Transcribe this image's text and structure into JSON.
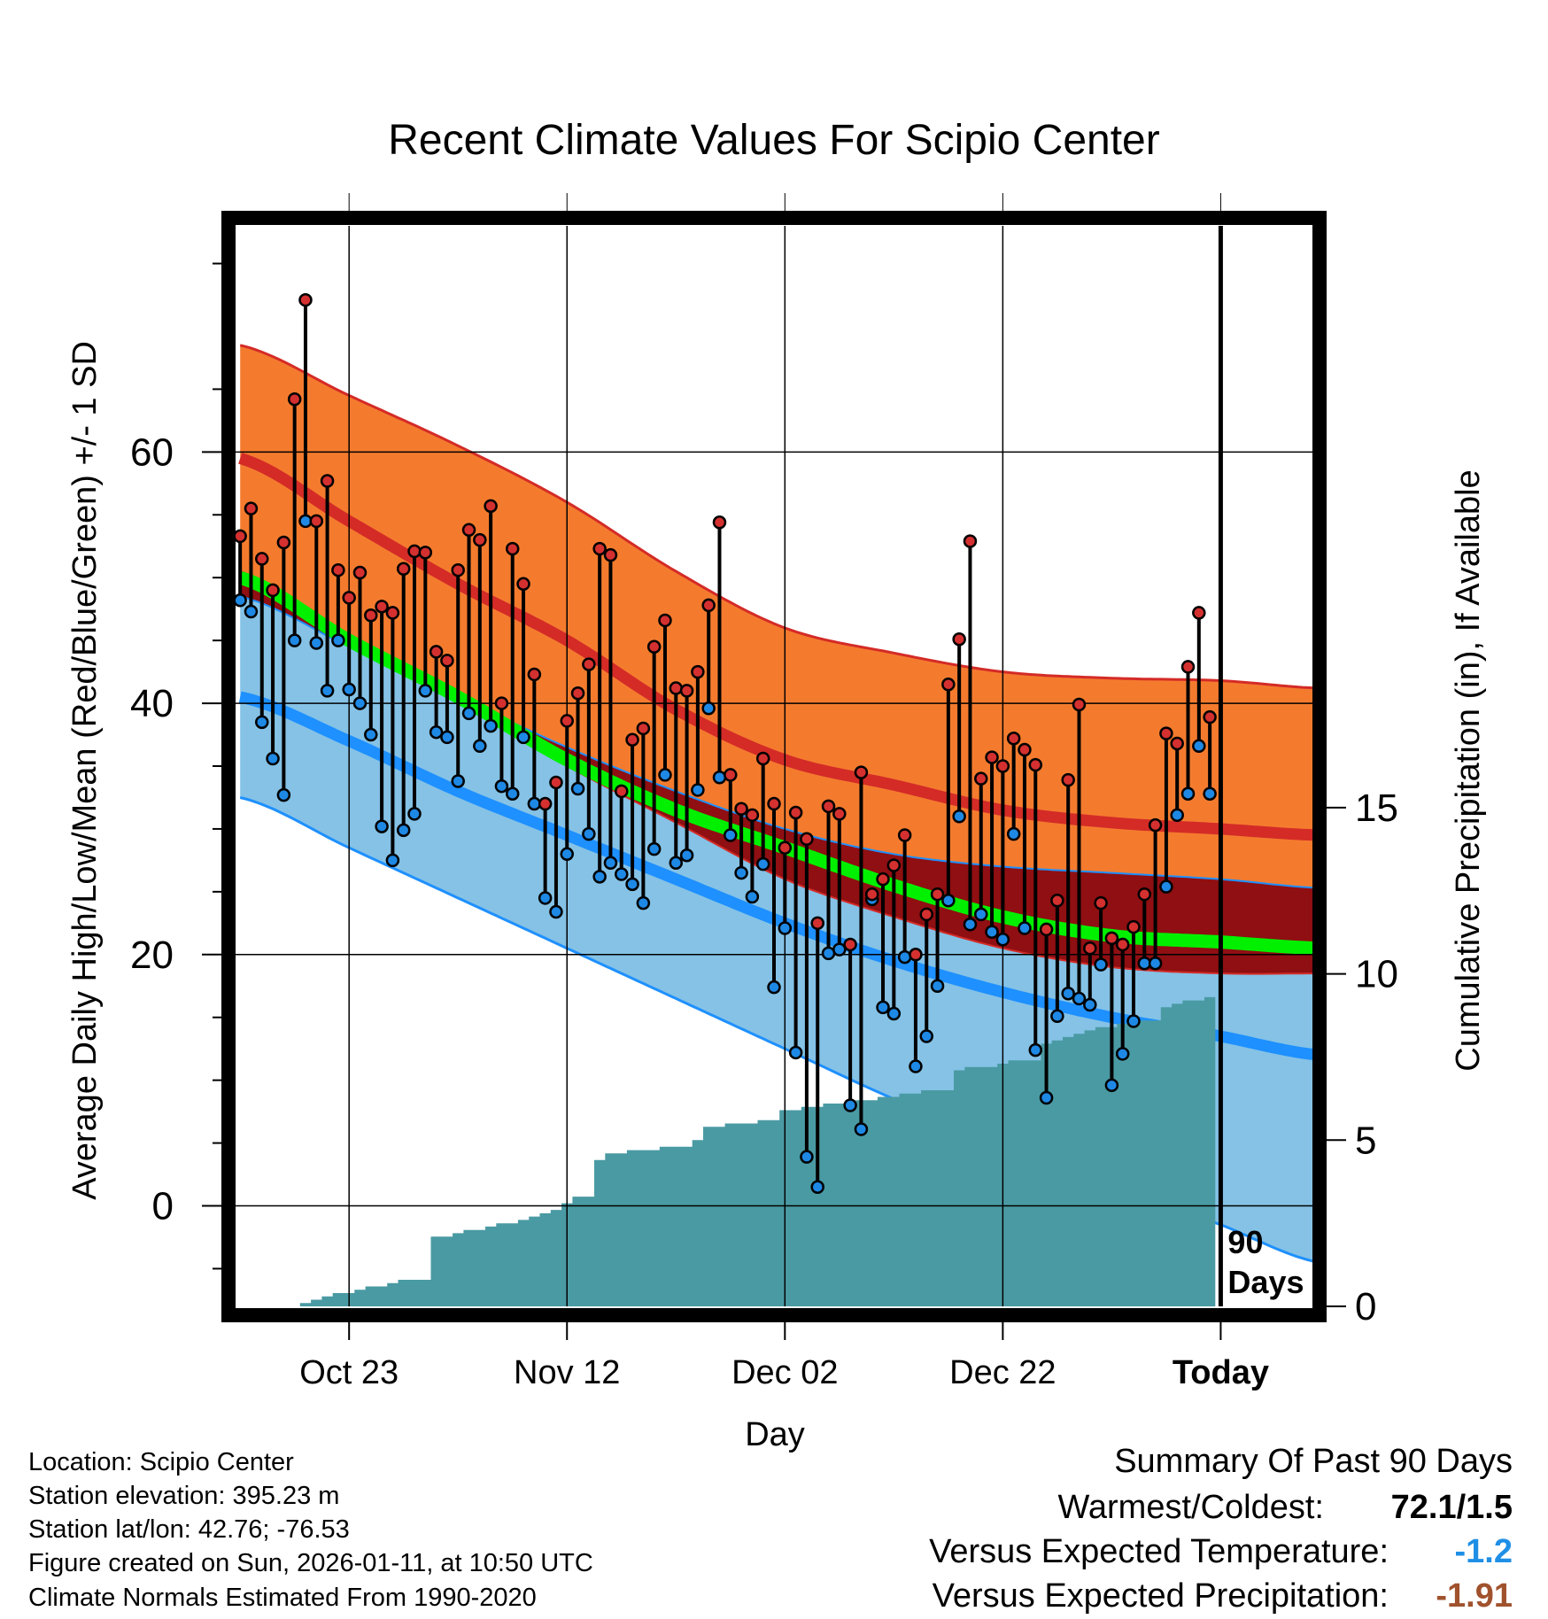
{
  "chart_data": {
    "type": "line",
    "title": "Recent Climate Values For Scipio Center",
    "xlabel": "Day",
    "ylabel": "Average Daily High/Low/Mean (Red/Blue/Green) +/- 1 SD",
    "y2label": "Cumulative Precipitation (in), If Available",
    "ylim": [
      -8,
      78
    ],
    "y2lim": [
      0,
      32.5
    ],
    "xlim": [
      -10.5,
      88.5
    ],
    "xticks": [
      {
        "day": 0,
        "label": "Oct 23"
      },
      {
        "day": 20,
        "label": "Nov 12"
      },
      {
        "day": 40,
        "label": "Dec 02"
      },
      {
        "day": 60,
        "label": "Dec 22"
      },
      {
        "day": 80,
        "label": "Today"
      }
    ],
    "yticks": [
      0,
      20,
      40,
      60
    ],
    "y2ticks": [
      0,
      5,
      10,
      15
    ],
    "today_marker": {
      "day": 80,
      "label_line1": "90",
      "label_line2": "Days"
    },
    "normals": {
      "days": [
        -10,
        0,
        10,
        20,
        30,
        40,
        50,
        60,
        70,
        80,
        89
      ],
      "high_plus_sd": [
        68.5,
        64.5,
        60.5,
        56,
        50.5,
        46,
        44,
        42.5,
        42,
        41.8,
        41.2
      ],
      "high_mean": [
        59.5,
        54.5,
        49.5,
        45,
        39.5,
        35.5,
        33.5,
        31.5,
        30.5,
        30,
        29.5
      ],
      "high_minus_sd": [
        50.5,
        45,
        40,
        35,
        30.5,
        26,
        23,
        20.5,
        19,
        18.5,
        18.5
      ],
      "mean_temp": [
        50,
        45,
        40.5,
        35.5,
        31.5,
        28.5,
        25.5,
        23,
        21.5,
        21,
        20.5
      ],
      "low_plus_sd": [
        48.5,
        44.5,
        40.5,
        36.5,
        33,
        30,
        28,
        27,
        26.5,
        26,
        25.3
      ],
      "low_mean": [
        40.5,
        37,
        33,
        29.5,
        26,
        22.5,
        19.5,
        17,
        15,
        13.5,
        12
      ],
      "low_minus_sd": [
        32.5,
        28.5,
        24.5,
        20.5,
        16.5,
        12.5,
        8.5,
        5,
        1.5,
        -1.5,
        -4.5
      ]
    },
    "series": [
      {
        "name": "Daily High",
        "values": [
          53.3,
          55.5,
          51.5,
          49,
          52.8,
          64.2,
          72.1,
          54.5,
          57.7,
          50.6,
          48.4,
          50.4,
          47,
          47.7,
          47.2,
          50.7,
          52.1,
          52,
          44.1,
          43.4,
          50.6,
          53.8,
          53,
          55.7,
          40,
          52.3,
          49.5,
          42.3,
          32,
          33.7,
          38.6,
          40.8,
          43.1,
          52.3,
          51.8,
          33,
          37.1,
          38,
          44.5,
          46.6,
          41.2,
          41,
          42.5,
          47.8,
          54.4,
          34.3,
          31.6,
          31.1,
          35.6,
          32,
          28.5,
          31.3,
          29.2,
          22.5,
          31.8,
          31.2,
          20.8,
          34.5,
          24.8,
          26,
          27.1,
          29.5,
          20,
          23.2,
          24.8,
          41.5,
          45.1,
          52.9,
          34,
          35.7,
          35,
          37.2,
          36.3,
          35.1,
          22,
          24.3,
          33.9,
          39.9,
          20.5,
          24.1,
          21.3,
          20.8,
          22.2,
          24.8,
          30.3,
          37.6,
          36.8,
          42.9,
          47.2,
          38.9
        ]
      },
      {
        "name": "Daily Low",
        "values": [
          48.2,
          47.3,
          38.5,
          35.6,
          32.7,
          45,
          54.5,
          44.8,
          41,
          45,
          41.1,
          40,
          37.5,
          30.2,
          27.5,
          29.9,
          31.2,
          41,
          37.7,
          37.3,
          33.8,
          39.2,
          36.6,
          38.2,
          33.4,
          32.8,
          37.3,
          32,
          24.5,
          23.4,
          28,
          33.2,
          29.6,
          26.2,
          27.3,
          26.4,
          25.6,
          24.1,
          28.4,
          34.3,
          27.3,
          27.9,
          33.1,
          39.6,
          34.1,
          29.5,
          26.5,
          24.6,
          27.2,
          17.4,
          22.1,
          12.2,
          3.9,
          1.5,
          20.1,
          20.4,
          8,
          6.1,
          24.4,
          15.8,
          15.3,
          19.8,
          11.1,
          13.5,
          17.5,
          24.3,
          31,
          22.4,
          23.2,
          21.8,
          21.2,
          29.6,
          22.1,
          12.4,
          8.6,
          15.1,
          16.9,
          16.5,
          16,
          19.2,
          9.6,
          12.1,
          14.7,
          19.3,
          19.3,
          25.4,
          31.1,
          32.8,
          36.6,
          32.8
        ]
      },
      {
        "name": "Cumulative Precipitation",
        "values": [
          0,
          0,
          0,
          0,
          0,
          0,
          0.1,
          0.2,
          0.3,
          0.4,
          0.4,
          0.5,
          0.6,
          0.6,
          0.7,
          0.8,
          0.8,
          0.8,
          2.1,
          2.1,
          2.2,
          2.3,
          2.3,
          2.4,
          2.5,
          2.5,
          2.6,
          2.7,
          2.8,
          2.9,
          3.1,
          3.3,
          3.3,
          4.4,
          4.6,
          4.6,
          4.7,
          4.7,
          4.7,
          4.8,
          4.8,
          4.8,
          5,
          5.4,
          5.4,
          5.5,
          5.5,
          5.5,
          5.6,
          5.6,
          5.9,
          5.9,
          6,
          6,
          6.1,
          6.1,
          6.1,
          6.2,
          6.2,
          6.3,
          6.3,
          6.4,
          6.4,
          6.5,
          6.5,
          6.5,
          7.1,
          7.2,
          7.2,
          7.2,
          7.3,
          7.4,
          7.4,
          7.4,
          7.9,
          8,
          8.1,
          8.2,
          8.3,
          8.4,
          8.4,
          8.5,
          8.5,
          8.6,
          8.6,
          9,
          9.1,
          9.2,
          9.2,
          9.3
        ]
      }
    ]
  },
  "footer": {
    "location": "Location: Scipio Center",
    "elevation": "Station elevation: 395.23 m",
    "latlon": "Station lat/lon: 42.76; -76.53",
    "created": "Figure created on Sun, 2026-01-11, at 10:50 UTC",
    "normals_source": "Climate Normals Estimated From 1990-2020"
  },
  "summary": {
    "heading": "Summary Of Past 90 Days",
    "warm_cold_label": "Warmest/Coldest:",
    "warm_cold_value": "72.1/1.5",
    "temp_label": "Versus Expected Temperature:",
    "temp_value": "-1.2",
    "temp_color": "#1f8fe6",
    "precip_label": "Versus Expected Precipitation:",
    "precip_value": "-1.91",
    "precip_color": "#a0522d"
  },
  "colors": {
    "high_band": "#f47b2e",
    "high_line": "#d42b27",
    "low_band": "#85c2e6",
    "low_line": "#1e90ff",
    "mean_line": "#00f000",
    "overlap": "#8f0f12",
    "precip": "#4a9aa3",
    "high_dot": "#d43030",
    "low_dot": "#1e88e5"
  }
}
